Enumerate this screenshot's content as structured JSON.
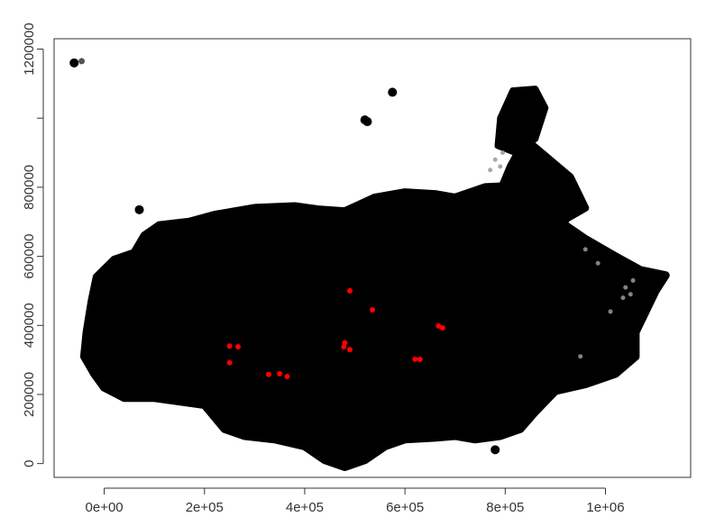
{
  "chart_data": {
    "type": "scatter",
    "title": "",
    "xlabel": "",
    "ylabel": "",
    "xlim": [
      -100000,
      1170000
    ],
    "ylim": [
      -40000,
      1230000
    ],
    "xticks": [
      {
        "value": 0,
        "label": "0e+00"
      },
      {
        "value": 200000,
        "label": "2e+05"
      },
      {
        "value": 400000,
        "label": "4e+05"
      },
      {
        "value": 600000,
        "label": "6e+05"
      },
      {
        "value": 800000,
        "label": "8e+05"
      },
      {
        "value": 1000000,
        "label": "1e+06"
      }
    ],
    "yticks": [
      {
        "value": 0,
        "label": "0"
      },
      {
        "value": 200000,
        "label": "200000"
      },
      {
        "value": 400000,
        "label": "400000"
      },
      {
        "value": 600000,
        "label": "600000"
      },
      {
        "value": 800000,
        "label": "800000"
      },
      {
        "value": 1200000,
        "label": "1200000"
      }
    ],
    "extra_ytick_marks": [
      1000000
    ],
    "grid": false,
    "legend": "none",
    "colors": {
      "points": "#000000",
      "highlight": "#ff0000",
      "speckle": "#9a9a9a",
      "axis": "#333333"
    },
    "dense_region": {
      "series_name": "",
      "boundary": [
        [
          -40000,
          310000
        ],
        [
          -35000,
          380000
        ],
        [
          -25000,
          470000
        ],
        [
          -15000,
          540000
        ],
        [
          20000,
          590000
        ],
        [
          60000,
          610000
        ],
        [
          80000,
          660000
        ],
        [
          110000,
          690000
        ],
        [
          170000,
          700000
        ],
        [
          220000,
          720000
        ],
        [
          300000,
          740000
        ],
        [
          380000,
          745000
        ],
        [
          430000,
          735000
        ],
        [
          480000,
          730000
        ],
        [
          540000,
          770000
        ],
        [
          600000,
          785000
        ],
        [
          660000,
          780000
        ],
        [
          700000,
          770000
        ],
        [
          760000,
          800000
        ],
        [
          900000,
          810000
        ],
        [
          920000,
          690000
        ],
        [
          960000,
          650000
        ],
        [
          1020000,
          600000
        ],
        [
          1070000,
          560000
        ],
        [
          1120000,
          545000
        ],
        [
          1100000,
          500000
        ],
        [
          1080000,
          440000
        ],
        [
          1060000,
          380000
        ],
        [
          1060000,
          310000
        ],
        [
          1020000,
          260000
        ],
        [
          960000,
          230000
        ],
        [
          900000,
          210000
        ],
        [
          860000,
          150000
        ],
        [
          830000,
          100000
        ],
        [
          790000,
          80000
        ],
        [
          740000,
          70000
        ],
        [
          700000,
          80000
        ],
        [
          660000,
          75000
        ],
        [
          600000,
          70000
        ],
        [
          560000,
          50000
        ],
        [
          520000,
          10000
        ],
        [
          480000,
          -10000
        ],
        [
          440000,
          10000
        ],
        [
          400000,
          50000
        ],
        [
          340000,
          70000
        ],
        [
          280000,
          80000
        ],
        [
          240000,
          100000
        ],
        [
          200000,
          170000
        ],
        [
          100000,
          190000
        ],
        [
          40000,
          190000
        ],
        [
          0,
          220000
        ],
        [
          -20000,
          260000
        ]
      ],
      "northern_arm": [
        [
          740000,
          630000
        ],
        [
          760000,
          700000
        ],
        [
          790000,
          790000
        ],
        [
          810000,
          860000
        ],
        [
          840000,
          940000
        ],
        [
          930000,
          830000
        ],
        [
          960000,
          740000
        ],
        [
          900000,
          690000
        ],
        [
          860000,
          650000
        ],
        [
          820000,
          630000
        ]
      ],
      "northern_tip": [
        [
          785000,
          920000
        ],
        [
          790000,
          1000000
        ],
        [
          815000,
          1080000
        ],
        [
          860000,
          1085000
        ],
        [
          880000,
          1030000
        ],
        [
          860000,
          940000
        ],
        [
          820000,
          900000
        ]
      ],
      "scattered": [
        [
          -60000,
          1160000
        ],
        [
          575000,
          1075000
        ],
        [
          520000,
          995000
        ],
        [
          525000,
          990000
        ],
        [
          70000,
          735000
        ],
        [
          780000,
          40000
        ]
      ]
    },
    "speckle_points": [
      [
        770000,
        850000
      ],
      [
        780000,
        880000
      ],
      [
        790000,
        860000
      ],
      [
        795000,
        900000
      ],
      [
        1040000,
        510000
      ],
      [
        1050000,
        490000
      ],
      [
        1055000,
        530000
      ],
      [
        1035000,
        480000
      ],
      [
        960000,
        620000
      ],
      [
        985000,
        580000
      ],
      [
        1010000,
        440000
      ],
      [
        950000,
        310000
      ]
    ],
    "outlier_gray": [
      [
        -45000,
        1165000
      ]
    ],
    "highlighted_points": [
      [
        250000,
        340000
      ],
      [
        267000,
        338000
      ],
      [
        250000,
        292000
      ],
      [
        328000,
        258000
      ],
      [
        350000,
        260000
      ],
      [
        365000,
        252000
      ],
      [
        490000,
        500000
      ],
      [
        535000,
        445000
      ],
      [
        480000,
        350000
      ],
      [
        478000,
        338000
      ],
      [
        490000,
        330000
      ],
      [
        620000,
        302000
      ],
      [
        630000,
        302000
      ],
      [
        667000,
        398000
      ],
      [
        675000,
        393000
      ]
    ]
  }
}
